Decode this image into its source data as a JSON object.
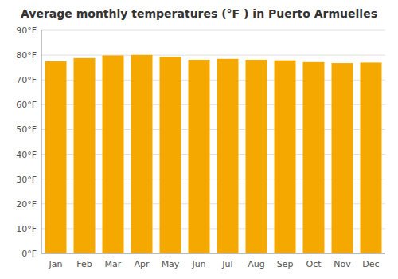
{
  "chart_data": {
    "type": "bar",
    "title": "Average monthly temperatures (°F ) in Puerto Armuelles",
    "categories": [
      "Jan",
      "Feb",
      "Mar",
      "Apr",
      "May",
      "Jun",
      "Jul",
      "Aug",
      "Sep",
      "Oct",
      "Nov",
      "Dec"
    ],
    "values": [
      77.5,
      78.8,
      79.9,
      80.1,
      79.3,
      78.1,
      78.5,
      78.1,
      77.9,
      77.2,
      76.8,
      77.0
    ],
    "color": "#F5A800",
    "ylim": [
      0,
      90
    ],
    "yticks": [
      {
        "value": 0,
        "label": "0°F"
      },
      {
        "value": 10,
        "label": "10°F"
      },
      {
        "value": 20,
        "label": "20°F"
      },
      {
        "value": 30,
        "label": "30°F"
      },
      {
        "value": 40,
        "label": "40°F"
      },
      {
        "value": 50,
        "label": "50°F"
      },
      {
        "value": 60,
        "label": "60°F"
      },
      {
        "value": 70,
        "label": "70°F"
      },
      {
        "value": 80,
        "label": "80°F"
      },
      {
        "value": 90,
        "label": "90°F"
      }
    ],
    "grid": true
  }
}
